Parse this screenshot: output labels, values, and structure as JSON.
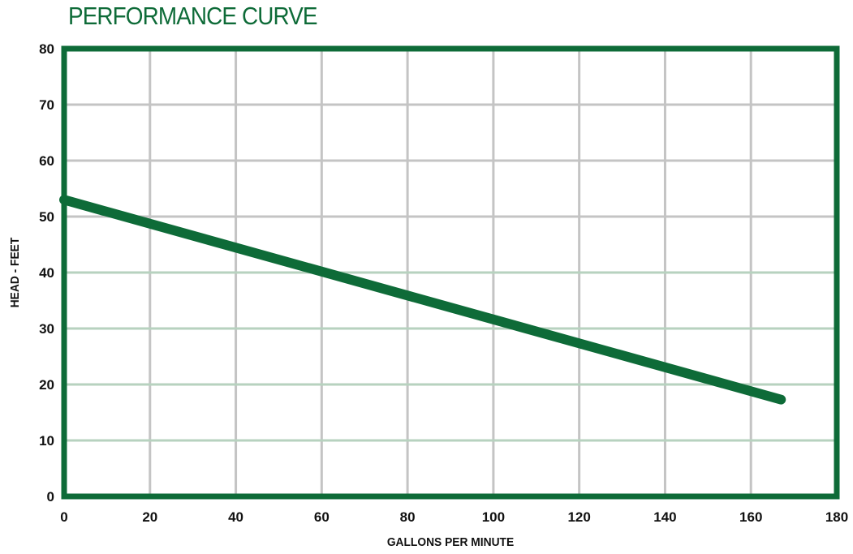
{
  "colors": {
    "brand_green": "#0e6b38",
    "grid_gray": "#c4c4c4",
    "grid_green": "#b7d2bf",
    "text": "#111111"
  },
  "chart_data": {
    "type": "line",
    "title": "PERFORMANCE CURVE",
    "xlabel": "GALLONS PER MINUTE",
    "ylabel": "HEAD - FEET",
    "xlim": [
      0,
      180
    ],
    "ylim": [
      0,
      80
    ],
    "xticks": [
      0,
      20,
      40,
      60,
      80,
      100,
      120,
      140,
      160,
      180
    ],
    "yticks": [
      0,
      10,
      20,
      30,
      40,
      50,
      60,
      70,
      80
    ],
    "grid": true,
    "legend": "none",
    "series": [
      {
        "x": [
          0,
          167
        ],
        "y": [
          53,
          17.3
        ]
      }
    ]
  }
}
